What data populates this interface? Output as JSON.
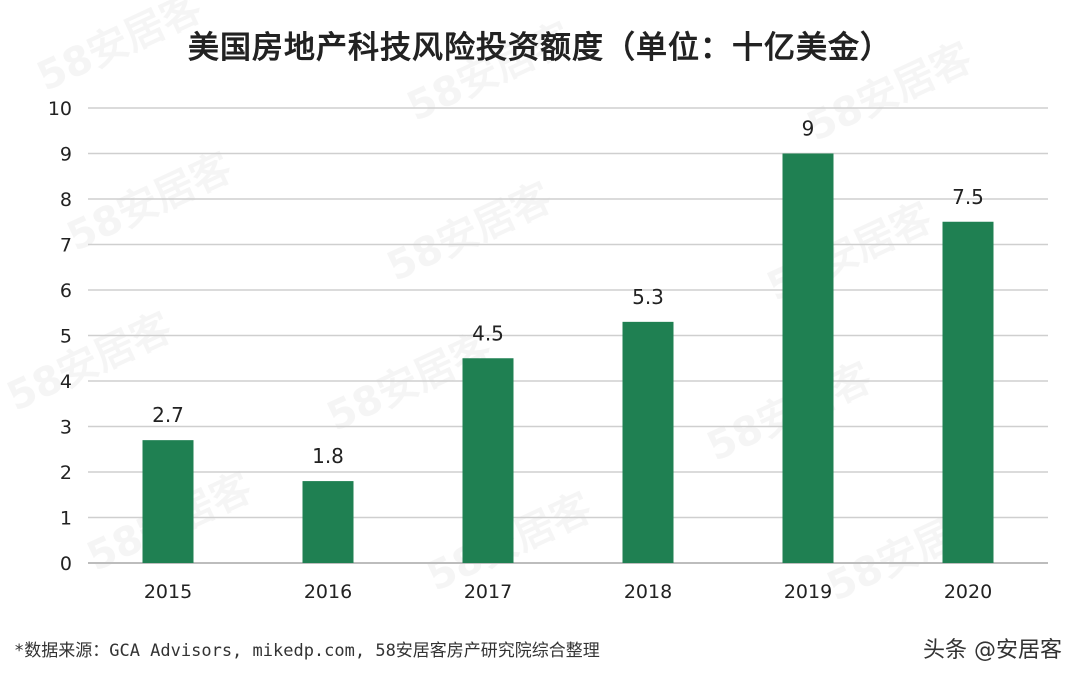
{
  "watermark": "58安居客",
  "colors": {
    "bar": "#1f8052",
    "grid": "#cfcfcf",
    "axis": "#bdbdbd",
    "text": "#222222"
  },
  "chart_data": {
    "type": "bar",
    "title": "美国房地产科技风险投资额度（单位：十亿美金）",
    "categories": [
      "2015",
      "2016",
      "2017",
      "2018",
      "2019",
      "2020"
    ],
    "values": [
      2.7,
      1.8,
      4.5,
      5.3,
      9,
      7.5
    ],
    "data_labels": [
      "2.7",
      "1.8",
      "4.5",
      "5.3",
      "9",
      "7.5"
    ],
    "yticks": [
      "0",
      "1",
      "2",
      "3",
      "4",
      "5",
      "6",
      "7",
      "8",
      "9",
      "10"
    ],
    "ylim": [
      0,
      10
    ],
    "grid": true,
    "xlabel": "",
    "ylabel": ""
  },
  "footer": {
    "source": "*数据来源：GCA Advisors, mikedp.com, 58安居客房产研究院综合整理",
    "credit": "头条 @安居客"
  }
}
